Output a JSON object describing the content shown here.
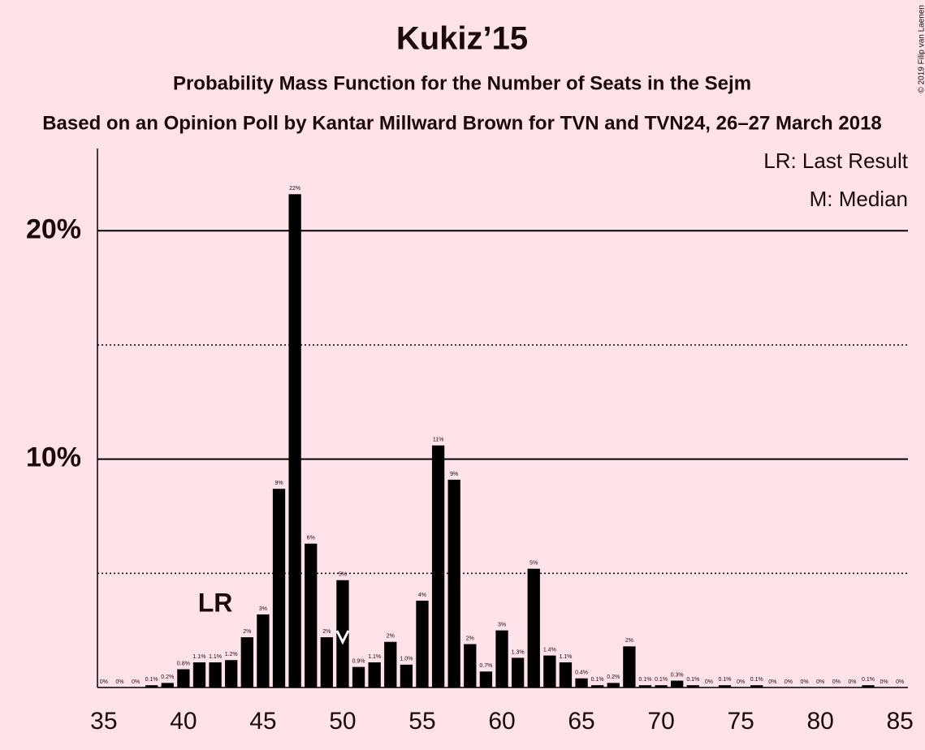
{
  "chart_data": {
    "type": "bar",
    "title": "Kukiz’15",
    "subtitle": "Probability Mass Function for the Number of Seats in the Sejm",
    "subtitle2": "Based on an Opinion Poll by Kantar Millward Brown for TVN and TVN24, 26–27 March 2018",
    "copyright": "© 2019 Filip van Laenen",
    "color": "#000000",
    "x": [
      35,
      36,
      37,
      38,
      39,
      40,
      41,
      42,
      43,
      44,
      45,
      46,
      47,
      48,
      49,
      50,
      51,
      52,
      53,
      54,
      55,
      56,
      57,
      58,
      59,
      60,
      61,
      62,
      63,
      64,
      65,
      66,
      67,
      68,
      69,
      70,
      71,
      72,
      73,
      74,
      75,
      76,
      77,
      78,
      79,
      80,
      81,
      82,
      83,
      84,
      85
    ],
    "values": [
      0,
      0,
      0,
      0.1,
      0.2,
      0.8,
      1.1,
      1.1,
      1.2,
      2.2,
      3.2,
      8.7,
      21.6,
      6.3,
      2.2,
      4.7,
      0.9,
      1.1,
      2.0,
      1.0,
      3.8,
      10.6,
      9.1,
      1.9,
      0.7,
      2.5,
      1.3,
      5.2,
      1.4,
      1.1,
      0.4,
      0.1,
      0.2,
      1.8,
      0.1,
      0.1,
      0.3,
      0.1,
      0,
      0.1,
      0,
      0.1,
      0,
      0,
      0,
      0,
      0,
      0,
      0.1,
      0,
      0
    ],
    "value_labels": [
      "0%",
      "0%",
      "0%",
      "0.1%",
      "0.2%",
      "0.8%",
      "1.1%",
      "1.1%",
      "1.2%",
      "2%",
      "3%",
      "9%",
      "22%",
      "6%",
      "2%",
      "5%",
      "0.9%",
      "1.1%",
      "2%",
      "1.0%",
      "4%",
      "11%",
      "9%",
      "2%",
      "0.7%",
      "3%",
      "1.3%",
      "5%",
      "1.4%",
      "1.1%",
      "0.4%",
      "0.1%",
      "0.2%",
      "2%",
      "0.1%",
      "0.1%",
      "0.3%",
      "0.1%",
      "0%",
      "0.1%",
      "0%",
      "0.1%",
      "0%",
      "0%",
      "0%",
      "0%",
      "0%",
      "0%",
      "0.1%",
      "0%",
      "0%"
    ],
    "xlim": [
      34.6,
      85.5
    ],
    "xticks": [
      35,
      40,
      45,
      50,
      55,
      60,
      65,
      70,
      75,
      80,
      85
    ],
    "ylim": [
      0,
      23.6
    ],
    "yticks": [
      {
        "value": 10,
        "label": "10%"
      },
      {
        "value": 20,
        "label": "20%"
      }
    ],
    "minor_yticks": [
      5,
      15
    ],
    "grid": true,
    "last_result": {
      "x": 42,
      "label": "LR"
    },
    "median": 50,
    "legend": [
      "LR: Last Result",
      "M: Median"
    ],
    "legend_position": "upper right"
  }
}
